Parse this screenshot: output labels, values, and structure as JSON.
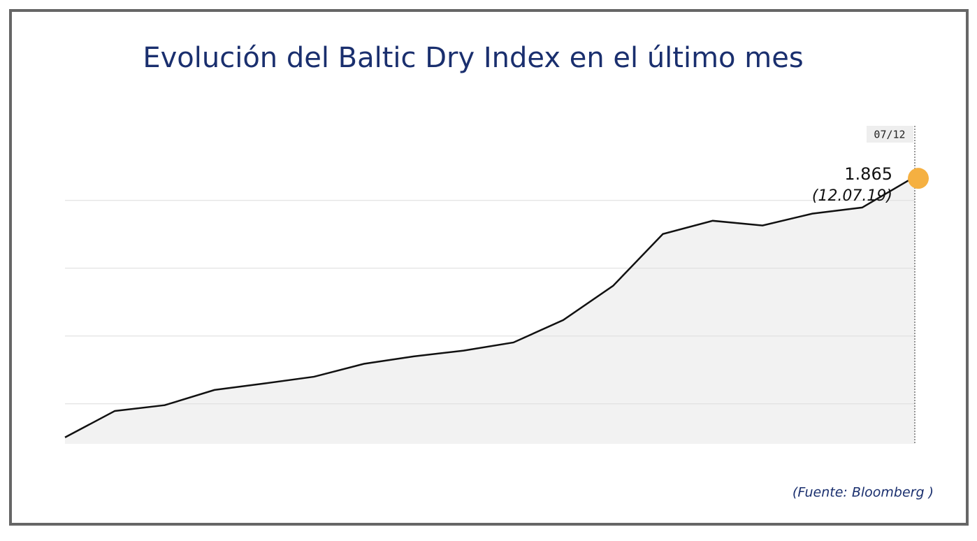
{
  "chart_data": {
    "type": "area",
    "title": "Evolución del Baltic Dry Index en el último mes",
    "categories": [
      null,
      null,
      null,
      null,
      null,
      null,
      null,
      null,
      null,
      null,
      null,
      null,
      null,
      null,
      null,
      null,
      null,
      "07/12"
    ],
    "values": [
      1101,
      1179,
      1196,
      1241,
      1260,
      1280,
      1318,
      1340,
      1357,
      1381,
      1447,
      1548,
      1701,
      1740,
      1726,
      1761,
      1779,
      1865
    ],
    "value_labels": [
      null,
      null,
      null,
      null,
      null,
      null,
      null,
      null,
      null,
      null,
      null,
      null,
      null,
      null,
      null,
      null,
      null,
      "1.865"
    ],
    "annotation": "(12.07.19)",
    "color": "#111111",
    "fill": "#f2f2f2",
    "marker_color": "#f5b041",
    "ylim": [
      1082,
      2020
    ],
    "yticks": [
      1200,
      1400,
      1600,
      1800
    ],
    "grid": true,
    "source": "(Fuente: Bloomberg )"
  }
}
